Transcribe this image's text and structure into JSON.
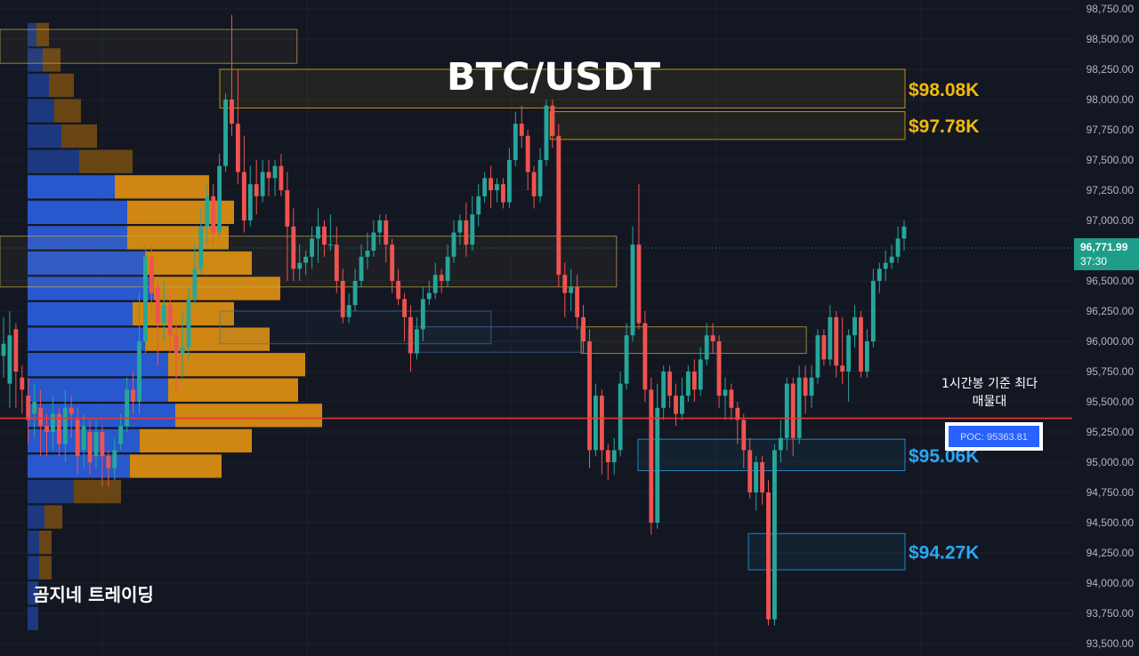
{
  "chart_data": {
    "type": "candlestick",
    "title": "BTC/USDT",
    "timeframe_note": "1시간봉 기준 최다 매물대",
    "watermark": "곰지네 트레이딩",
    "ylim": [
      93450,
      98800
    ],
    "y_ticks": [
      {
        "v": 98750,
        "label": "98,750.00"
      },
      {
        "v": 98500,
        "label": "98,500.00"
      },
      {
        "v": 98250,
        "label": "98,250.00"
      },
      {
        "v": 98000,
        "label": "98,000.00"
      },
      {
        "v": 97750,
        "label": "97,750.00"
      },
      {
        "v": 97500,
        "label": "97,500.00"
      },
      {
        "v": 97250,
        "label": "97,250.00"
      },
      {
        "v": 97000,
        "label": "97,000.00"
      },
      {
        "v": 96500,
        "label": "96,500.00"
      },
      {
        "v": 96250,
        "label": "96,250.00"
      },
      {
        "v": 96000,
        "label": "96,000.00"
      },
      {
        "v": 95750,
        "label": "95,750.00"
      },
      {
        "v": 95500,
        "label": "95,500.00"
      },
      {
        "v": 95250,
        "label": "95,250.00"
      },
      {
        "v": 95000,
        "label": "95,000.00"
      },
      {
        "v": 94750,
        "label": "94,750.00"
      },
      {
        "v": 94500,
        "label": "94,500.00"
      },
      {
        "v": 94250,
        "label": "94,250.00"
      },
      {
        "v": 94000,
        "label": "94,000.00"
      },
      {
        "v": 93750,
        "label": "93,750.00"
      },
      {
        "v": 93500,
        "label": "93,500.00"
      }
    ],
    "last_price": {
      "value": 96771.99,
      "label": "96,771.99",
      "countdown": "37:30"
    },
    "poc": {
      "value": 95363.81,
      "label": "POC: 95363.81"
    },
    "levels": [
      {
        "label": "$98.08K",
        "top": 98250,
        "bottom": 97930,
        "color": "#f0b90b",
        "kind": "resistance",
        "start": 0.205
      },
      {
        "label": "$97.78K",
        "top": 97900,
        "bottom": 97670,
        "color": "#f0b90b",
        "kind": "resistance",
        "start": 0.513
      },
      {
        "label": "$95.06K",
        "top": 95190,
        "bottom": 94930,
        "color": "#29a8f5",
        "kind": "support",
        "start": 0.595
      },
      {
        "label": "$94.27K",
        "top": 94410,
        "bottom": 94110,
        "color": "#29a8f5",
        "kind": "support",
        "start": 0.698
      }
    ],
    "zones": [
      {
        "top": 98580,
        "bottom": 98300,
        "start": 0.0,
        "end": 0.277,
        "color": "#c8b040"
      },
      {
        "top": 96870,
        "bottom": 96450,
        "start": 0.0,
        "end": 0.575,
        "color": "#c8b040"
      },
      {
        "top": 96250,
        "bottom": 95980,
        "start": 0.205,
        "end": 0.458,
        "color": "#4a6fa0"
      },
      {
        "top": 96120,
        "bottom": 95910,
        "start": 0.381,
        "end": 0.542,
        "color": "#4a6fa0"
      },
      {
        "top": 96120,
        "bottom": 95900,
        "start": 0.542,
        "end": 0.752,
        "color": "#c8b040"
      }
    ],
    "volume_profile": {
      "bin_size": 208,
      "rows": [
        {
          "p": 98530,
          "buy": 10,
          "sell": 14
        },
        {
          "p": 98320,
          "buy": 17,
          "sell": 20
        },
        {
          "p": 98110,
          "buy": 24,
          "sell": 28
        },
        {
          "p": 97900,
          "buy": 30,
          "sell": 30
        },
        {
          "p": 97690,
          "buy": 38,
          "sell": 40
        },
        {
          "p": 97480,
          "buy": 58,
          "sell": 60
        },
        {
          "p": 97270,
          "buy": 98,
          "sell": 106
        },
        {
          "p": 97060,
          "buy": 112,
          "sell": 120
        },
        {
          "p": 96850,
          "buy": 112,
          "sell": 114
        },
        {
          "p": 96640,
          "buy": 132,
          "sell": 120
        },
        {
          "p": 96430,
          "buy": 142,
          "sell": 142
        },
        {
          "p": 96220,
          "buy": 118,
          "sell": 114
        },
        {
          "p": 96010,
          "buy": 132,
          "sell": 140
        },
        {
          "p": 95800,
          "buy": 158,
          "sell": 154
        },
        {
          "p": 95590,
          "buy": 158,
          "sell": 146
        },
        {
          "p": 95380,
          "buy": 166,
          "sell": 165
        },
        {
          "p": 95170,
          "buy": 126,
          "sell": 126
        },
        {
          "p": 94960,
          "buy": 115,
          "sell": 103
        },
        {
          "p": 94750,
          "buy": 52,
          "sell": 53
        },
        {
          "p": 94540,
          "buy": 19,
          "sell": 20
        },
        {
          "p": 94330,
          "buy": 13,
          "sell": 14
        },
        {
          "p": 94120,
          "buy": 13,
          "sell": 14
        },
        {
          "p": 93910,
          "buy": 12,
          "sell": 0
        },
        {
          "p": 93700,
          "buy": 12,
          "sell": 0
        }
      ]
    },
    "candles": [
      [
        95880,
        95980,
        96200,
        95700
      ],
      [
        95650,
        96050,
        96250,
        95450
      ],
      [
        96100,
        95750,
        96150,
        95450
      ],
      [
        95700,
        95600,
        95800,
        95400
      ],
      [
        95550,
        95350,
        95700,
        95150
      ],
      [
        95400,
        95500,
        95650,
        95200
      ],
      [
        95450,
        95300,
        95600,
        95050
      ],
      [
        95300,
        95250,
        95400,
        95050
      ],
      [
        95250,
        95400,
        95550,
        95100
      ],
      [
        95400,
        95150,
        95450,
        95050
      ],
      [
        95150,
        95450,
        95600,
        95000
      ],
      [
        95450,
        95400,
        95550,
        95200
      ],
      [
        95350,
        95050,
        95450,
        94900
      ],
      [
        95100,
        95300,
        95400,
        94950
      ],
      [
        95250,
        95000,
        95350,
        94900
      ],
      [
        95050,
        95250,
        95350,
        94950
      ],
      [
        95250,
        95050,
        95300,
        94800
      ],
      [
        95050,
        94950,
        95100,
        94800
      ],
      [
        94950,
        95100,
        95200,
        94850
      ],
      [
        95150,
        95300,
        95400,
        95100
      ],
      [
        95300,
        95600,
        95700,
        95250
      ],
      [
        95600,
        95500,
        95750,
        95400
      ],
      [
        95500,
        96000,
        96400,
        95400
      ],
      [
        96000,
        96700,
        96800,
        95900
      ],
      [
        96700,
        96400,
        96800,
        96200
      ],
      [
        96450,
        96150,
        96500,
        95800
      ],
      [
        96150,
        96300,
        96500,
        96000
      ],
      [
        96300,
        96050,
        96400,
        95900
      ],
      [
        96050,
        95900,
        96150,
        95600
      ],
      [
        95900,
        95950,
        96250,
        95700
      ],
      [
        95950,
        96350,
        96450,
        95850
      ],
      [
        96350,
        96600,
        96800,
        96300
      ],
      [
        96600,
        96950,
        97100,
        96550
      ],
      [
        96950,
        97200,
        97300,
        96800
      ],
      [
        97200,
        96900,
        97300,
        96800
      ],
      [
        96900,
        97450,
        97550,
        96850
      ],
      [
        97450,
        98000,
        98050,
        97400
      ],
      [
        98000,
        97800,
        98700,
        97700
      ],
      [
        97800,
        97400,
        98250,
        97300
      ],
      [
        97400,
        97000,
        97700,
        96900
      ],
      [
        97000,
        97300,
        97450,
        96950
      ],
      [
        97300,
        97200,
        97500,
        97050
      ],
      [
        97200,
        97400,
        97500,
        97150
      ],
      [
        97400,
        97350,
        97500,
        97200
      ],
      [
        97350,
        97450,
        97500,
        97200
      ],
      [
        97450,
        97250,
        97550,
        97200
      ],
      [
        97250,
        96950,
        97400,
        96500
      ],
      [
        96950,
        96600,
        97100,
        96500
      ],
      [
        96600,
        96650,
        96800,
        96500
      ],
      [
        96650,
        96700,
        96750,
        96550
      ],
      [
        96700,
        96850,
        96950,
        96600
      ],
      [
        96850,
        96950,
        97100,
        96650
      ],
      [
        96950,
        96800,
        97000,
        96700
      ],
      [
        96800,
        96800,
        97050,
        96750
      ],
      [
        96800,
        96500,
        96950,
        96400
      ],
      [
        96500,
        96200,
        96600,
        96150
      ],
      [
        96200,
        96300,
        96400,
        96150
      ],
      [
        96300,
        96500,
        96600,
        96250
      ],
      [
        96500,
        96700,
        96800,
        96450
      ],
      [
        96700,
        96750,
        96900,
        96600
      ],
      [
        96750,
        96900,
        97000,
        96700
      ],
      [
        96900,
        97000,
        97050,
        96800
      ],
      [
        97000,
        96800,
        97050,
        96650
      ],
      [
        96800,
        96500,
        96850,
        96400
      ],
      [
        96500,
        96350,
        96600,
        96300
      ],
      [
        96350,
        96200,
        96400,
        96000
      ],
      [
        96200,
        95900,
        96300,
        95750
      ],
      [
        95900,
        96100,
        96200,
        95850
      ],
      [
        96100,
        96350,
        96450,
        96000
      ],
      [
        96350,
        96400,
        96500,
        96300
      ],
      [
        96400,
        96550,
        96650,
        96350
      ],
      [
        96550,
        96500,
        96600,
        96400
      ],
      [
        96500,
        96700,
        96800,
        96450
      ],
      [
        96700,
        96900,
        97000,
        96650
      ],
      [
        96900,
        97000,
        97050,
        96800
      ],
      [
        97000,
        96800,
        97150,
        96700
      ],
      [
        96800,
        97050,
        97200,
        96750
      ],
      [
        97050,
        97200,
        97300,
        96950
      ],
      [
        97200,
        97350,
        97400,
        97150
      ],
      [
        97350,
        97250,
        97450,
        97100
      ],
      [
        97250,
        97300,
        97350,
        97150
      ],
      [
        97300,
        97150,
        97350,
        97100
      ],
      [
        97150,
        97500,
        97600,
        97100
      ],
      [
        97500,
        97800,
        97900,
        97450
      ],
      [
        97800,
        97700,
        97950,
        97600
      ],
      [
        97700,
        97400,
        97750,
        97250
      ],
      [
        97400,
        97200,
        97450,
        97100
      ],
      [
        97200,
        97500,
        97600,
        97150
      ],
      [
        97500,
        97950,
        98000,
        97450
      ],
      [
        97950,
        97700,
        98000,
        97600
      ],
      [
        97700,
        96550,
        97800,
        96450
      ],
      [
        96550,
        96400,
        96650,
        96200
      ],
      [
        96400,
        96450,
        96600,
        96250
      ],
      [
        96450,
        96200,
        96550,
        96100
      ],
      [
        96200,
        96000,
        96300,
        95900
      ],
      [
        96000,
        95100,
        96100,
        94950
      ],
      [
        95100,
        95550,
        95650,
        95050
      ],
      [
        95550,
        95100,
        95600,
        94900
      ],
      [
        95100,
        95000,
        95150,
        94850
      ],
      [
        95000,
        95100,
        95200,
        94900
      ],
      [
        95100,
        95650,
        95750,
        95050
      ],
      [
        95650,
        96050,
        96150,
        95600
      ],
      [
        96050,
        96800,
        96950,
        96000
      ],
      [
        96800,
        96150,
        97300,
        96100
      ],
      [
        96150,
        95600,
        96250,
        95500
      ],
      [
        95600,
        94500,
        95700,
        94400
      ],
      [
        94500,
        95450,
        95650,
        94450
      ],
      [
        95450,
        95750,
        95800,
        95350
      ],
      [
        95750,
        95550,
        95800,
        95450
      ],
      [
        95550,
        95400,
        95650,
        95300
      ],
      [
        95400,
        95550,
        95700,
        95350
      ],
      [
        95550,
        95750,
        95800,
        95500
      ],
      [
        95750,
        95600,
        95850,
        95500
      ],
      [
        95600,
        95850,
        95950,
        95550
      ],
      [
        95850,
        96050,
        96150,
        95800
      ],
      [
        96050,
        96000,
        96150,
        95900
      ],
      [
        96000,
        95550,
        96050,
        95450
      ],
      [
        95550,
        95600,
        95700,
        95350
      ],
      [
        95600,
        95450,
        95650,
        95350
      ],
      [
        95450,
        95350,
        95500,
        95150
      ],
      [
        95350,
        95100,
        95400,
        94950
      ],
      [
        95100,
        94750,
        95200,
        94700
      ],
      [
        94750,
        95000,
        95050,
        94600
      ],
      [
        95000,
        94750,
        95050,
        94650
      ],
      [
        94750,
        93700,
        94850,
        93650
      ],
      [
        93700,
        95100,
        95150,
        93650
      ],
      [
        95100,
        95200,
        95350,
        95000
      ],
      [
        95200,
        95650,
        95700,
        95100
      ],
      [
        95650,
        95200,
        95700,
        95050
      ],
      [
        95200,
        95700,
        95800,
        95150
      ],
      [
        95700,
        95550,
        95800,
        95400
      ],
      [
        95550,
        95700,
        95800,
        95450
      ],
      [
        95700,
        96050,
        96100,
        95650
      ],
      [
        96050,
        95850,
        96100,
        95800
      ],
      [
        95850,
        96200,
        96300,
        95800
      ],
      [
        96200,
        95800,
        96250,
        95700
      ],
      [
        95800,
        95750,
        96200,
        95650
      ],
      [
        95750,
        96050,
        96100,
        95500
      ],
      [
        96050,
        96200,
        96300,
        95950
      ],
      [
        96200,
        95750,
        96250,
        95700
      ],
      [
        95750,
        96000,
        96100,
        95700
      ],
      [
        96000,
        96500,
        96600,
        95950
      ],
      [
        96500,
        96600,
        96650,
        96400
      ],
      [
        96600,
        96650,
        96750,
        96500
      ],
      [
        96650,
        96700,
        96800,
        96600
      ],
      [
        96700,
        96850,
        96950,
        96650
      ],
      [
        96850,
        96950,
        97000,
        96750
      ]
    ]
  }
}
